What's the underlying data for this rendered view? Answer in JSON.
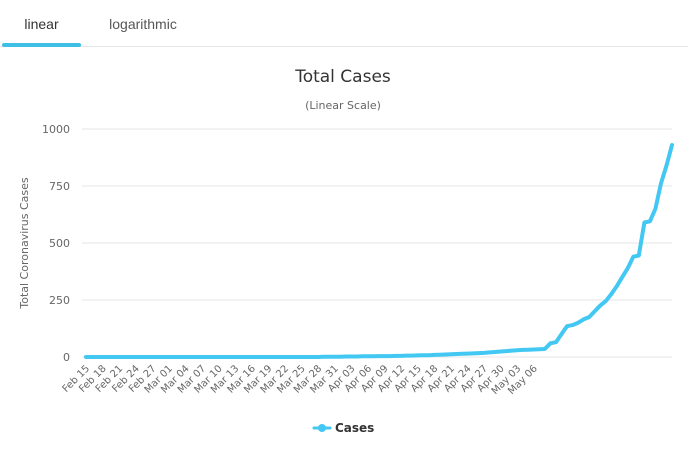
{
  "tabs": [
    {
      "label": "linear",
      "active": true
    },
    {
      "label": "logarithmic",
      "active": false
    }
  ],
  "colors": {
    "series": "#42c8f2",
    "grid": "#e6e6e6",
    "axis_text": "#666666",
    "title": "#333333"
  },
  "chart_data": {
    "type": "line",
    "title": "Total Cases",
    "subtitle": "(Linear Scale)",
    "xlabel": "",
    "ylabel": "Total Coronavirus Cases",
    "ylim": [
      0,
      1000
    ],
    "y_ticks": [
      0,
      250,
      500,
      750,
      1000
    ],
    "x_tick_labels": [
      "Feb 15",
      "Feb 18",
      "Feb 21",
      "Feb 24",
      "Feb 27",
      "Mar 01",
      "Mar 04",
      "Mar 07",
      "Mar 10",
      "Mar 13",
      "Mar 16",
      "Mar 19",
      "Mar 22",
      "Mar 25",
      "Mar 28",
      "Mar 31",
      "Apr 03",
      "Apr 06",
      "Apr 09",
      "Apr 12",
      "Apr 15",
      "Apr 18",
      "Apr 21",
      "Apr 24",
      "Apr 27",
      "Apr 30",
      "May 03",
      "May 06"
    ],
    "x_tick_step_days": 3,
    "legend": "bottom-center",
    "series": [
      {
        "name": "Cases",
        "start_date": "Feb 15",
        "values": [
          0,
          0,
          0,
          0,
          0,
          0,
          0,
          0,
          0,
          0,
          0,
          0,
          0,
          0,
          0,
          0,
          0,
          0,
          0,
          0,
          0,
          0,
          0,
          0,
          0,
          0,
          0,
          0,
          0,
          0,
          0,
          0,
          0,
          0,
          0,
          0,
          0,
          0,
          0,
          0,
          0,
          0,
          0,
          1,
          1,
          1,
          1,
          2,
          2,
          2,
          3,
          3,
          3,
          4,
          4,
          4,
          5,
          5,
          6,
          6,
          7,
          8,
          8,
          9,
          10,
          11,
          12,
          13,
          14,
          15,
          16,
          17,
          18,
          20,
          22,
          24,
          26,
          28,
          30,
          31,
          32,
          33,
          34,
          35,
          60,
          65,
          100,
          135,
          140,
          150,
          165,
          175,
          200,
          225,
          245,
          275,
          310,
          350,
          390,
          440,
          445,
          590,
          595,
          650,
          760,
          840,
          930
        ]
      }
    ]
  }
}
